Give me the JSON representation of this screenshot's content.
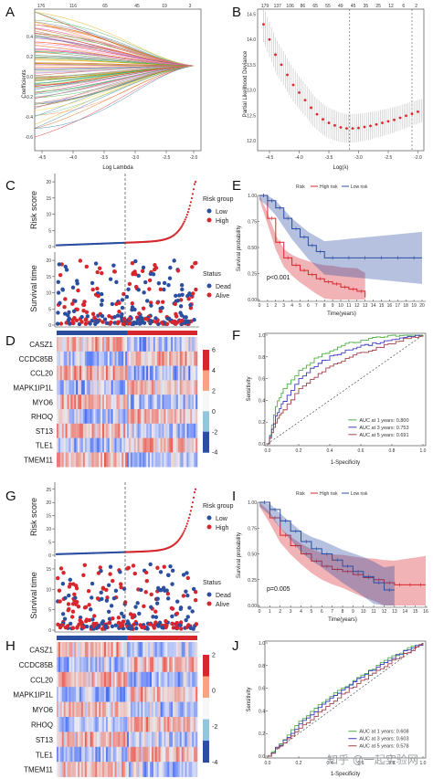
{
  "panel_labels": [
    "A",
    "B",
    "C",
    "D",
    "E",
    "F",
    "G",
    "H",
    "I",
    "J"
  ],
  "panelA": {
    "top_ticks": [
      "176",
      "116",
      "65",
      "45",
      "19",
      "3"
    ],
    "y_label": "Coefficients",
    "x_label": "Log Lambda",
    "x_ticks": [
      "-4.5",
      "-4.0",
      "-3.5",
      "-3.0",
      "-2.5",
      "-2.0"
    ],
    "y_ticks": [
      "0.4",
      "0.2",
      "0.0",
      "-0.2",
      "-0.4",
      "-0.6"
    ]
  },
  "panelB": {
    "top_ticks": [
      "179",
      "137",
      "106",
      "86",
      "65",
      "55",
      "49",
      "45",
      "35",
      "25",
      "12",
      "6",
      "2"
    ],
    "y_label": "Partial Likelihood Deviance",
    "x_label": "Log(λ)",
    "x_ticks": [
      "-4.5",
      "-4.0",
      "-3.5",
      "-3.0",
      "-2.5",
      "-2.0"
    ],
    "y_ticks": [
      "14.5",
      "14.0",
      "13.5",
      "13.0",
      "12.5",
      "12.0"
    ]
  },
  "riskC": {
    "y_label": "Risk score",
    "y_ticks": [
      "20",
      "15",
      "10",
      "5",
      "0"
    ],
    "legend_title": "Risk group",
    "legend_items": [
      "Low",
      "High"
    ],
    "colors": {
      "low": "#2b4ea0",
      "high": "#d7262c"
    }
  },
  "survC": {
    "y_label": "Survival time",
    "y_ticks": [
      "20",
      "15",
      "10",
      "5",
      "0"
    ],
    "legend_title": "Status",
    "legend_items": [
      "Dead",
      "Alive"
    ]
  },
  "heatD": {
    "genes": [
      "CASZ1",
      "CCDC85B",
      "CCL20",
      "MAPK1IP1L",
      "MYO6",
      "RHOQ",
      "ST13",
      "TLE1",
      "TMEM11"
    ],
    "scale_ticks": [
      "6",
      "4",
      "2",
      "0",
      "-2",
      "-4"
    ]
  },
  "kmE": {
    "legend_items": [
      "Risk",
      "High risk",
      "Low risk"
    ],
    "y_label": "Survival probability",
    "x_label": "Time(years)",
    "x_ticks": [
      "0",
      "1",
      "2",
      "3",
      "4",
      "5",
      "6",
      "7",
      "8",
      "9",
      "10",
      "11",
      "12",
      "13",
      "14",
      "15",
      "16",
      "17",
      "18",
      "19",
      "20"
    ],
    "y_ticks": [
      "1.00",
      "0.75",
      "0.50",
      "0.25",
      "0.00"
    ],
    "p_value": "p<0.001"
  },
  "rocF": {
    "y_label": "Sensitivity",
    "x_label": "1-Specificity",
    "ticks": [
      "0.0",
      "0.2",
      "0.4",
      "0.6",
      "0.8",
      "1.0"
    ],
    "auc_labels": [
      "AUC at 1 years: 0.800",
      "AUC at 3 years: 0.753",
      "AUC at 5 years: 0.691"
    ]
  },
  "riskG": {
    "y_label": "Risk score",
    "y_ticks": [
      "25",
      "20",
      "15",
      "10",
      "5",
      "0"
    ],
    "legend_title": "Risk group",
    "legend_items": [
      "Low",
      "High"
    ]
  },
  "survG": {
    "y_label": "Survival time",
    "y_ticks": [
      "15",
      "10",
      "5",
      "0"
    ],
    "legend_title": "Status",
    "legend_items": [
      "Dead",
      "Alive"
    ]
  },
  "heatH": {
    "genes": [
      "CASZ1",
      "CCDC85B",
      "CCL20",
      "MAPK1IP1L",
      "MYO6",
      "RHOQ",
      "ST13",
      "TLE1",
      "TMEM11"
    ],
    "scale_ticks": [
      "2",
      "0",
      "-2",
      "-4"
    ]
  },
  "kmI": {
    "legend_items": [
      "Risk",
      "High risk",
      "Low risk"
    ],
    "y_label": "Survival probability",
    "x_label": "Time(years)",
    "x_ticks": [
      "0",
      "1",
      "2",
      "3",
      "4",
      "5",
      "6",
      "7",
      "8",
      "9",
      "10",
      "11",
      "12",
      "13",
      "14",
      "15",
      "16"
    ],
    "y_ticks": [
      "1.00",
      "0.75",
      "0.50",
      "0.25",
      "0.00"
    ],
    "p_value": "p=0.005"
  },
  "rocJ": {
    "y_label": "Sensitivity",
    "x_label": "1-Specificity",
    "ticks": [
      "0.0",
      "0.2",
      "0.4",
      "0.6",
      "0.8",
      "1.0"
    ],
    "auc_labels": [
      "AUC at 1 years: 0.608",
      "AUC at 3 years: 0.603",
      "AUC at 5 years: 0.578"
    ]
  },
  "watermark": "知乎 @一起实验网",
  "chart_data": [
    {
      "type": "line",
      "title": "",
      "xlabel": "Log(λ)",
      "ylabel": "Partial Likelihood Deviance",
      "x": [
        -4.6,
        -4.5,
        -4.4,
        -4.3,
        -4.2,
        -4.1,
        -4.0,
        -3.9,
        -3.8,
        -3.7,
        -3.6,
        -3.5,
        -3.4,
        -3.3,
        -3.2,
        -3.1,
        -3.0,
        -2.9,
        -2.8,
        -2.7,
        -2.6,
        -2.5,
        -2.4,
        -2.3,
        -2.2,
        -2.1,
        -2.0
      ],
      "series": [
        {
          "values": [
            14.3,
            14.0,
            13.7,
            13.5,
            13.3,
            13.1,
            12.95,
            12.8,
            12.65,
            12.52,
            12.42,
            12.35,
            12.3,
            12.26,
            12.24,
            12.24,
            12.25,
            12.27,
            12.29,
            12.32,
            12.35,
            12.38,
            12.41,
            12.45,
            12.49,
            12.53,
            12.57
          ]
        }
      ],
      "xlim": [
        -4.7,
        -1.9
      ],
      "ylim": [
        11.8,
        14.6
      ]
    },
    {
      "type": "line",
      "xlabel": "Time(years)",
      "ylabel": "Survival probability",
      "series": [
        {
          "name": "High risk",
          "x": [
            0,
            1,
            2,
            3,
            4,
            5,
            6,
            7,
            8,
            9,
            10,
            11,
            12,
            13
          ],
          "values": [
            1.0,
            0.78,
            0.55,
            0.4,
            0.33,
            0.28,
            0.24,
            0.2,
            0.17,
            0.15,
            0.12,
            0.1,
            0.08,
            0.02
          ]
        },
        {
          "name": "Low risk",
          "x": [
            0,
            1,
            2,
            3,
            4,
            5,
            6,
            7,
            8,
            10,
            12,
            14,
            16,
            18,
            20
          ],
          "values": [
            1.0,
            0.95,
            0.88,
            0.78,
            0.68,
            0.6,
            0.52,
            0.46,
            0.4,
            0.4,
            0.4,
            0.4,
            0.4,
            0.4,
            0.4
          ]
        }
      ],
      "xlim": [
        0,
        20
      ],
      "ylim": [
        0,
        1
      ]
    },
    {
      "type": "line",
      "xlabel": "1-Specificity",
      "ylabel": "Sensitivity",
      "series": [
        {
          "name": "AUC at 1 years: 0.800",
          "x": [
            0,
            0.05,
            0.1,
            0.2,
            0.3,
            0.4,
            0.5,
            0.6,
            0.7,
            0.8,
            0.9,
            1.0
          ],
          "values": [
            0,
            0.35,
            0.5,
            0.68,
            0.78,
            0.86,
            0.92,
            0.95,
            0.98,
            1.0,
            1.0,
            1.0
          ]
        },
        {
          "name": "AUC at 3 years: 0.753",
          "x": [
            0,
            0.05,
            0.1,
            0.2,
            0.3,
            0.4,
            0.5,
            0.6,
            0.7,
            0.8,
            0.9,
            1.0
          ],
          "values": [
            0,
            0.25,
            0.4,
            0.6,
            0.72,
            0.8,
            0.86,
            0.9,
            0.93,
            0.96,
            0.98,
            1.0
          ]
        },
        {
          "name": "AUC at 5 years: 0.691",
          "x": [
            0,
            0.05,
            0.1,
            0.2,
            0.3,
            0.4,
            0.5,
            0.6,
            0.7,
            0.8,
            0.9,
            1.0
          ],
          "values": [
            0,
            0.2,
            0.32,
            0.5,
            0.62,
            0.72,
            0.78,
            0.84,
            0.88,
            0.93,
            0.97,
            1.0
          ]
        }
      ],
      "xlim": [
        0,
        1
      ],
      "ylim": [
        0,
        1
      ]
    },
    {
      "type": "line",
      "xlabel": "Time(years)",
      "ylabel": "Survival probability",
      "series": [
        {
          "name": "High risk",
          "x": [
            0,
            1,
            2,
            3,
            4,
            5,
            6,
            7,
            8,
            9,
            10,
            11,
            12,
            13,
            14,
            15,
            16
          ],
          "values": [
            1.0,
            0.85,
            0.68,
            0.58,
            0.5,
            0.43,
            0.38,
            0.35,
            0.33,
            0.3,
            0.27,
            0.25,
            0.22,
            0.2,
            0.2,
            0.2,
            0.2
          ]
        },
        {
          "name": "Low risk",
          "x": [
            0,
            1,
            2,
            3,
            4,
            5,
            6,
            7,
            8,
            9,
            10,
            11,
            12,
            13
          ],
          "values": [
            1.0,
            0.93,
            0.82,
            0.72,
            0.62,
            0.55,
            0.5,
            0.44,
            0.38,
            0.33,
            0.28,
            0.22,
            0.15,
            0.15
          ]
        }
      ],
      "xlim": [
        0,
        16
      ],
      "ylim": [
        0,
        1
      ]
    },
    {
      "type": "line",
      "xlabel": "1-Specificity",
      "ylabel": "Sensitivity",
      "series": [
        {
          "name": "AUC at 1 years: 0.608",
          "x": [
            0,
            0.1,
            0.2,
            0.3,
            0.4,
            0.5,
            0.6,
            0.7,
            0.8,
            0.9,
            1.0
          ],
          "values": [
            0,
            0.15,
            0.3,
            0.42,
            0.53,
            0.62,
            0.71,
            0.8,
            0.88,
            0.95,
            1.0
          ]
        },
        {
          "name": "AUC at 3 years: 0.603",
          "x": [
            0,
            0.1,
            0.2,
            0.3,
            0.4,
            0.5,
            0.6,
            0.7,
            0.8,
            0.9,
            1.0
          ],
          "values": [
            0,
            0.14,
            0.28,
            0.4,
            0.52,
            0.61,
            0.7,
            0.79,
            0.87,
            0.94,
            1.0
          ]
        },
        {
          "name": "AUC at 5 years: 0.578",
          "x": [
            0,
            0.1,
            0.2,
            0.3,
            0.4,
            0.5,
            0.6,
            0.7,
            0.8,
            0.9,
            1.0
          ],
          "values": [
            0,
            0.12,
            0.24,
            0.36,
            0.47,
            0.57,
            0.66,
            0.75,
            0.84,
            0.92,
            1.0
          ]
        }
      ],
      "xlim": [
        0,
        1
      ],
      "ylim": [
        0,
        1
      ]
    }
  ]
}
